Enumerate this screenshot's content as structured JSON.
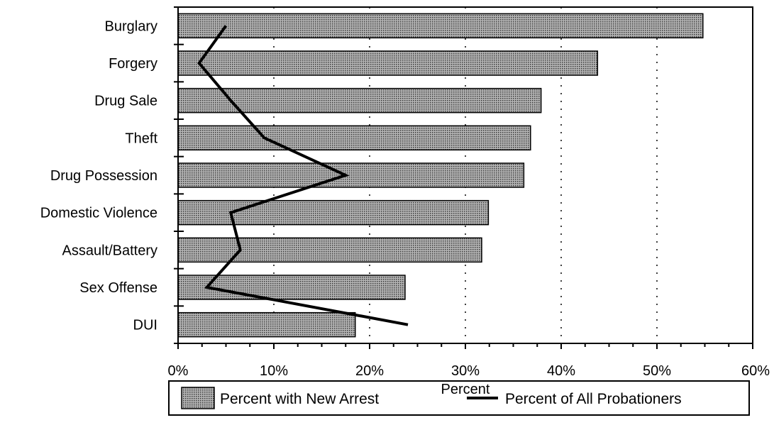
{
  "chart_data": {
    "type": "bar",
    "orientation": "horizontal",
    "categories": [
      "Burglary",
      "Forgery",
      "Drug Sale",
      "Theft",
      "Drug Possession",
      "Domestic Violence",
      "Assault/Battery",
      "Sex Offense",
      "DUI"
    ],
    "series": [
      {
        "name": "Percent with New Arrest",
        "mark": "bar",
        "values": [
          54.8,
          43.8,
          37.9,
          36.8,
          36.1,
          32.4,
          31.7,
          23.7,
          18.5
        ]
      },
      {
        "name": "Percent of All Probationers",
        "mark": "line",
        "values": [
          5.0,
          2.2,
          5.5,
          9.0,
          17.5,
          5.5,
          6.5,
          3.0,
          24.0
        ]
      }
    ],
    "xlabel": "Percent",
    "ylabel": "",
    "xlim": [
      0,
      60
    ],
    "xticks": [
      0,
      10,
      20,
      30,
      40,
      50,
      60
    ],
    "xtick_labels": [
      "0%",
      "10%",
      "20%",
      "30%",
      "40%",
      "50%",
      "60%"
    ],
    "grid": "vertical-dotted",
    "legend_placement": "bottom",
    "colors": {
      "bar_fill": "#8a8a8a",
      "line": "#000000",
      "grid": "#000000"
    }
  }
}
